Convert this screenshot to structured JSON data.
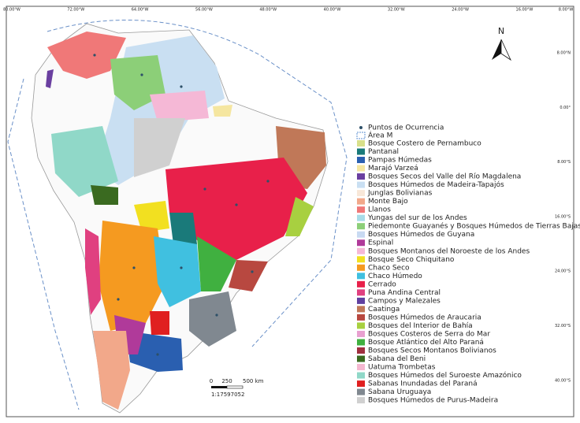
{
  "map": {
    "top_labels": [
      "80.00°W",
      "72.00°W",
      "64.00°W",
      "56.00°W",
      "48.00°W",
      "40.00°W",
      "32.00°W",
      "24.00°W",
      "16.00°W",
      "8.00°W"
    ],
    "right_labels": [
      "8.00°N",
      "0.00°",
      "8.00°S",
      "16.00°S",
      "24.00°S",
      "32.00°S",
      "40.00°S"
    ],
    "north": "N",
    "scale": {
      "labels": [
        "0",
        "250",
        "500 km"
      ],
      "ratio": "1:17597052"
    },
    "legend": [
      {
        "label": "Puntos de Ocurrencia",
        "color": "#2d5068"
      },
      {
        "label": "Área M",
        "color": "#5b8fd0"
      },
      {
        "label": "Bosque Costero de Pernambuco",
        "color": "#d8e08a"
      },
      {
        "label": "Pantanal",
        "color": "#1a7a7a"
      },
      {
        "label": "Pampas Húmedas",
        "color": "#2a5fb0"
      },
      {
        "label": "Marajó Varzeá",
        "color": "#f5e6a0"
      },
      {
        "label": "Bosques Secos del Valle del Río Magdalena",
        "color": "#6a3fa0"
      },
      {
        "label": "Bosques Húmedos de Madeira-Tapajós",
        "color": "#c9dff2"
      },
      {
        "label": "Junglas Bolivianas",
        "color": "#f8e7d8"
      },
      {
        "label": "Monte Bajo",
        "color": "#f2a88a"
      },
      {
        "label": "Llanos",
        "color": "#f07878"
      },
      {
        "label": "Yungas del sur de los Andes",
        "color": "#a8dce8"
      },
      {
        "label": "Piedemonte Guayanés y Bosques Húmedos de Tierras Bajas",
        "color": "#8ccf78"
      },
      {
        "label": "Bosques Húmedos de Guyana",
        "color": "#c8daf2"
      },
      {
        "label": "Espinal",
        "color": "#b03a9a"
      },
      {
        "label": "Bosques Montanos del Noroeste de los Andes",
        "color": "#f5b8d6"
      },
      {
        "label": "Bosque Seco Chiquitano",
        "color": "#f2e020"
      },
      {
        "label": "Chaco Seco",
        "color": "#f59a20"
      },
      {
        "label": "Chaco Húmedo",
        "color": "#40c0e0"
      },
      {
        "label": "Cerrado",
        "color": "#e8204a"
      },
      {
        "label": "Puna Andina Central",
        "color": "#e04080"
      },
      {
        "label": "Campos y Malezales",
        "color": "#6040a0"
      },
      {
        "label": "Caatinga",
        "color": "#c07858"
      },
      {
        "label": "Bosques Húmedos de Araucaria",
        "color": "#b84840"
      },
      {
        "label": "Bosques del Interior de Bahía",
        "color": "#a8d040"
      },
      {
        "label": "Bosques Costeros de Serra do Mar",
        "color": "#e8a0d0"
      },
      {
        "label": "Bosque Atlántico del Alto Paraná",
        "color": "#40b040"
      },
      {
        "label": "Bosques Secos Montanos Bolivianos",
        "color": "#a03040"
      },
      {
        "label": "Sabana del Beni",
        "color": "#3a6a20"
      },
      {
        "label": "Uatuma Trombetas",
        "color": "#f5b8d0"
      },
      {
        "label": "Bosques Húmedos del Suroeste Amazónico",
        "color": "#90d8c8"
      },
      {
        "label": "Sabanas Inundadas del Paraná",
        "color": "#e02020"
      },
      {
        "label": "Sabana Uruguaya",
        "color": "#808890"
      },
      {
        "label": "Bosques Húmedos de Purus-Madeira",
        "color": "#d0d0d0"
      }
    ]
  }
}
